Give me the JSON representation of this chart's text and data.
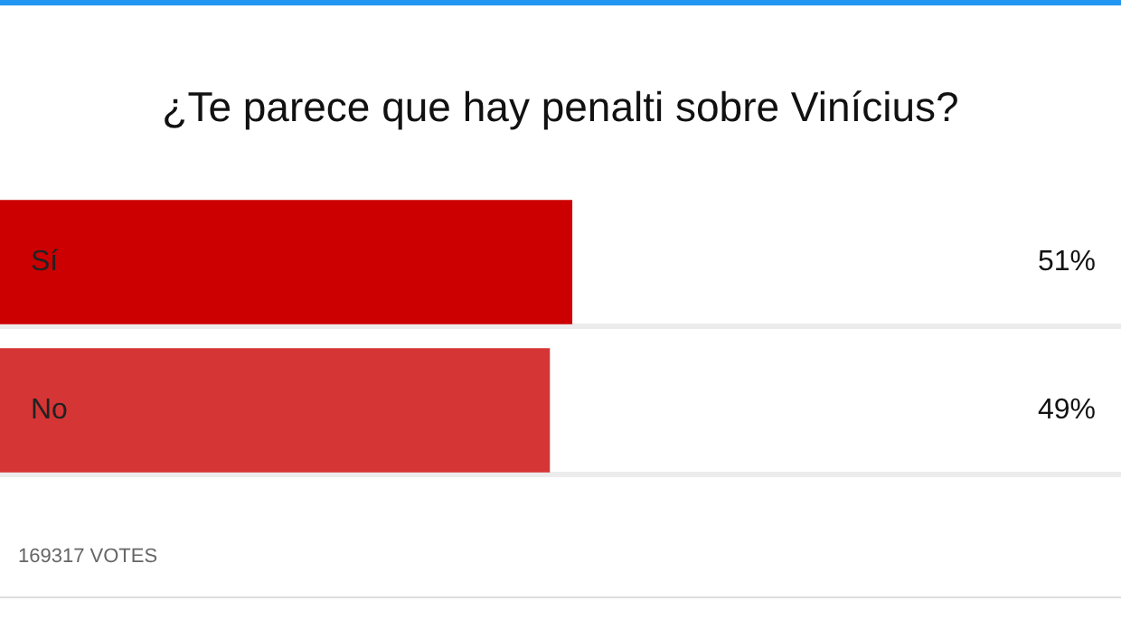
{
  "chart_data": {
    "type": "bar",
    "orientation": "horizontal",
    "title": "¿Te parece que hay penalti sobre Vinícius?",
    "categories": [
      "Sí",
      "No"
    ],
    "values": [
      51,
      49
    ],
    "colors": [
      "#cc0000",
      "#d63535"
    ],
    "value_labels": [
      "51%",
      "49%"
    ],
    "xlim": [
      0,
      100
    ],
    "legend": false,
    "tick_labels": false,
    "annotations": [
      "169317 VOTES"
    ]
  }
}
